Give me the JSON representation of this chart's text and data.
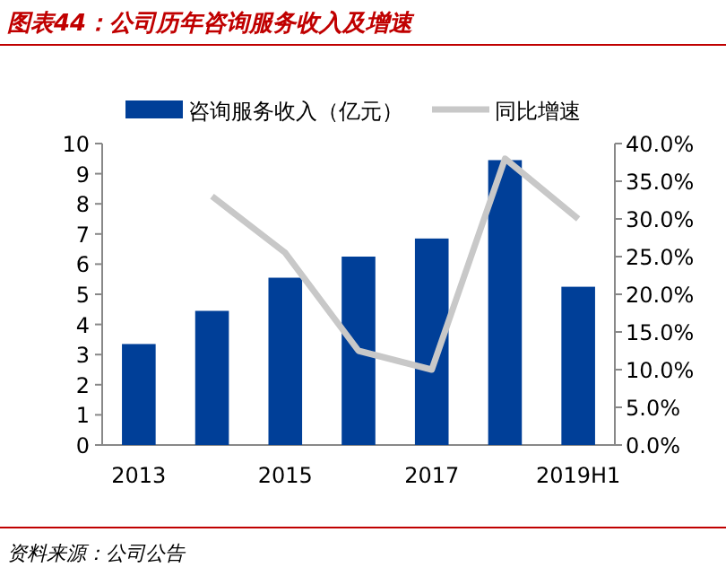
{
  "chart_data": {
    "type": "bar",
    "title": "图表44：公司历年咨询服务收入及增速",
    "categories": [
      "2013",
      null,
      "2015",
      null,
      "2017",
      null,
      "2019H1"
    ],
    "series": [
      {
        "name": "咨询服务收入（亿元）",
        "color": "#003f98",
        "values": [
          3.35,
          4.45,
          5.55,
          6.25,
          6.85,
          9.45,
          5.25
        ]
      },
      {
        "name": "同比增速",
        "type": "line",
        "axis": "y2",
        "color": "#c8c8c8",
        "values": [
          null,
          33,
          25.5,
          12.5,
          10,
          38,
          30
        ]
      }
    ],
    "ylim": [
      0,
      10
    ],
    "yticks": [
      0,
      1,
      2,
      3,
      4,
      5,
      6,
      7,
      8,
      9,
      10
    ],
    "y2lim": [
      0,
      40
    ],
    "y2ticks": [
      {
        "value": 0,
        "label": "0.0%"
      },
      {
        "value": 5,
        "label": "5.0%"
      },
      {
        "value": 10,
        "label": "10.0%"
      },
      {
        "value": 15,
        "label": "15.0%"
      },
      {
        "value": 20,
        "label": "20.0%"
      },
      {
        "value": 25,
        "label": "25.0%"
      },
      {
        "value": 30,
        "label": "30.0%"
      },
      {
        "value": 35,
        "label": "35.0%"
      },
      {
        "value": 40,
        "label": "40.0%"
      }
    ],
    "legend": "top",
    "grid": false,
    "annotations": [
      "资料来源：公司公告"
    ]
  }
}
